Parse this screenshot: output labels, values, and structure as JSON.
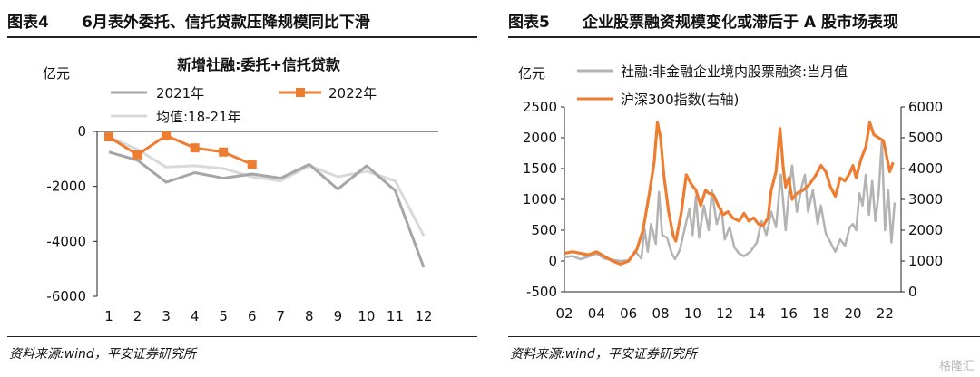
{
  "left": {
    "label": "图表4",
    "title": "6月表外委托、信托贷款压降规模同比下滑",
    "source": "资料来源:wind，平安证券研究所"
  },
  "right": {
    "label": "图表5",
    "title": "企业股票融资规模变化或滞后于 A 股市场表现",
    "source": "资料来源:wind，平安证券研究所"
  },
  "watermark": "格隆汇",
  "chart_data": [
    {
      "type": "line",
      "title": "新增社融:委托+信托贷款",
      "ylabel": "亿元",
      "xlabel": "",
      "ylim": [
        -6000,
        0
      ],
      "yticks": [
        0,
        -2000,
        -4000,
        -6000
      ],
      "x": [
        1,
        2,
        3,
        4,
        5,
        6,
        7,
        8,
        9,
        10,
        11,
        12
      ],
      "legend": "top-left",
      "series": [
        {
          "name": "2021年",
          "color": "#a6a6a6",
          "marker": "none",
          "values": [
            -750,
            -1050,
            -1850,
            -1500,
            -1700,
            -1550,
            -1700,
            -1200,
            -2100,
            -1250,
            -2150,
            -4950
          ]
        },
        {
          "name": "2022年",
          "color": "#ed7d31",
          "marker": "square",
          "values": [
            -200,
            -850,
            -150,
            -600,
            -750,
            -1200,
            null,
            null,
            null,
            null,
            null,
            null
          ]
        },
        {
          "name": "均值:18-21年",
          "color": "#d9d9d9",
          "marker": "none",
          "values": [
            -200,
            -650,
            -1300,
            -1250,
            -1350,
            -1650,
            -1800,
            -1250,
            -1650,
            -1450,
            -1800,
            -3800
          ]
        }
      ]
    },
    {
      "type": "line",
      "title": "",
      "ylabel": "亿元",
      "xlabel": "",
      "ylim": [
        -500,
        2500
      ],
      "yticks": [
        2500,
        2000,
        1500,
        1000,
        500,
        0,
        -500
      ],
      "y2lim": [
        0,
        6000
      ],
      "y2ticks": [
        6000,
        5000,
        4000,
        3000,
        2000,
        1000,
        0
      ],
      "categories": [
        "02",
        "04",
        "06",
        "08",
        "10",
        "12",
        "14",
        "16",
        "18",
        "20",
        "22"
      ],
      "xrange": [
        2002,
        2023
      ],
      "legend": "top-left",
      "series": [
        {
          "name": "社融:非金融企业境内股票融资:当月值",
          "axis": "left",
          "color": "#b3b3b3",
          "points": [
            [
              2002.0,
              60
            ],
            [
              2002.5,
              80
            ],
            [
              2003.0,
              30
            ],
            [
              2003.5,
              70
            ],
            [
              2004.0,
              120
            ],
            [
              2004.5,
              40
            ],
            [
              2005.0,
              20
            ],
            [
              2005.5,
              0
            ],
            [
              2006.0,
              10
            ],
            [
              2006.4,
              160
            ],
            [
              2006.8,
              40
            ],
            [
              2007.0,
              520
            ],
            [
              2007.2,
              150
            ],
            [
              2007.4,
              600
            ],
            [
              2007.7,
              280
            ],
            [
              2007.9,
              1120
            ],
            [
              2008.1,
              420
            ],
            [
              2008.4,
              380
            ],
            [
              2008.7,
              120
            ],
            [
              2008.9,
              30
            ],
            [
              2009.2,
              180
            ],
            [
              2009.5,
              520
            ],
            [
              2009.8,
              850
            ],
            [
              2010.0,
              420
            ],
            [
              2010.2,
              1050
            ],
            [
              2010.4,
              380
            ],
            [
              2010.7,
              900
            ],
            [
              2011.0,
              500
            ],
            [
              2011.2,
              1150
            ],
            [
              2011.5,
              600
            ],
            [
              2011.8,
              850
            ],
            [
              2012.0,
              350
            ],
            [
              2012.3,
              550
            ],
            [
              2012.6,
              220
            ],
            [
              2012.9,
              120
            ],
            [
              2013.2,
              80
            ],
            [
              2013.6,
              150
            ],
            [
              2014.0,
              300
            ],
            [
              2014.3,
              650
            ],
            [
              2014.6,
              420
            ],
            [
              2014.9,
              800
            ],
            [
              2015.2,
              550
            ],
            [
              2015.5,
              1400
            ],
            [
              2015.8,
              500
            ],
            [
              2016.0,
              1100
            ],
            [
              2016.2,
              1550
            ],
            [
              2016.5,
              800
            ],
            [
              2016.8,
              1200
            ],
            [
              2017.0,
              1400
            ],
            [
              2017.2,
              800
            ],
            [
              2017.5,
              1150
            ],
            [
              2017.8,
              600
            ],
            [
              2018.0,
              900
            ],
            [
              2018.3,
              450
            ],
            [
              2018.6,
              300
            ],
            [
              2018.9,
              150
            ],
            [
              2019.2,
              350
            ],
            [
              2019.5,
              250
            ],
            [
              2019.8,
              550
            ],
            [
              2020.0,
              600
            ],
            [
              2020.2,
              500
            ],
            [
              2020.4,
              1100
            ],
            [
              2020.6,
              900
            ],
            [
              2020.8,
              1400
            ],
            [
              2021.0,
              750
            ],
            [
              2021.2,
              1300
            ],
            [
              2021.4,
              650
            ],
            [
              2021.6,
              1100
            ],
            [
              2021.8,
              1950
            ],
            [
              2022.0,
              500
            ],
            [
              2022.2,
              1150
            ],
            [
              2022.4,
              300
            ],
            [
              2022.6,
              950
            ]
          ]
        },
        {
          "name": "沪深300指数(右轴)",
          "axis": "right",
          "color": "#ed7d31",
          "points": [
            [
              2002.0,
              1250
            ],
            [
              2002.5,
              1300
            ],
            [
              2003.0,
              1250
            ],
            [
              2003.5,
              1200
            ],
            [
              2004.0,
              1300
            ],
            [
              2004.5,
              1150
            ],
            [
              2005.0,
              1000
            ],
            [
              2005.5,
              900
            ],
            [
              2006.0,
              1000
            ],
            [
              2006.5,
              1350
            ],
            [
              2006.9,
              2000
            ],
            [
              2007.3,
              3200
            ],
            [
              2007.6,
              4200
            ],
            [
              2007.8,
              5500
            ],
            [
              2008.0,
              5000
            ],
            [
              2008.2,
              3800
            ],
            [
              2008.5,
              2600
            ],
            [
              2008.8,
              1800
            ],
            [
              2008.95,
              1650
            ],
            [
              2009.3,
              2600
            ],
            [
              2009.6,
              3800
            ],
            [
              2009.9,
              3500
            ],
            [
              2010.2,
              3300
            ],
            [
              2010.5,
              2800
            ],
            [
              2010.8,
              3300
            ],
            [
              2011.0,
              3200
            ],
            [
              2011.3,
              3150
            ],
            [
              2011.6,
              2800
            ],
            [
              2011.9,
              2500
            ],
            [
              2012.2,
              2600
            ],
            [
              2012.5,
              2400
            ],
            [
              2012.9,
              2300
            ],
            [
              2013.2,
              2550
            ],
            [
              2013.5,
              2300
            ],
            [
              2013.8,
              2400
            ],
            [
              2014.1,
              2200
            ],
            [
              2014.4,
              2150
            ],
            [
              2014.7,
              2400
            ],
            [
              2014.9,
              3300
            ],
            [
              2015.2,
              3900
            ],
            [
              2015.45,
              5300
            ],
            [
              2015.65,
              4000
            ],
            [
              2015.8,
              3400
            ],
            [
              2016.0,
              3700
            ],
            [
              2016.2,
              3000
            ],
            [
              2016.5,
              3200
            ],
            [
              2016.9,
              3300
            ],
            [
              2017.3,
              3500
            ],
            [
              2017.7,
              3800
            ],
            [
              2018.0,
              4100
            ],
            [
              2018.3,
              3900
            ],
            [
              2018.6,
              3400
            ],
            [
              2018.9,
              3100
            ],
            [
              2019.2,
              3700
            ],
            [
              2019.5,
              3600
            ],
            [
              2019.8,
              3850
            ],
            [
              2020.0,
              4100
            ],
            [
              2020.2,
              3700
            ],
            [
              2020.5,
              4300
            ],
            [
              2020.8,
              4700
            ],
            [
              2021.05,
              5500
            ],
            [
              2021.3,
              5100
            ],
            [
              2021.6,
              5000
            ],
            [
              2021.9,
              4900
            ],
            [
              2022.1,
              4400
            ],
            [
              2022.3,
              3900
            ],
            [
              2022.5,
              4200
            ]
          ]
        }
      ]
    }
  ]
}
